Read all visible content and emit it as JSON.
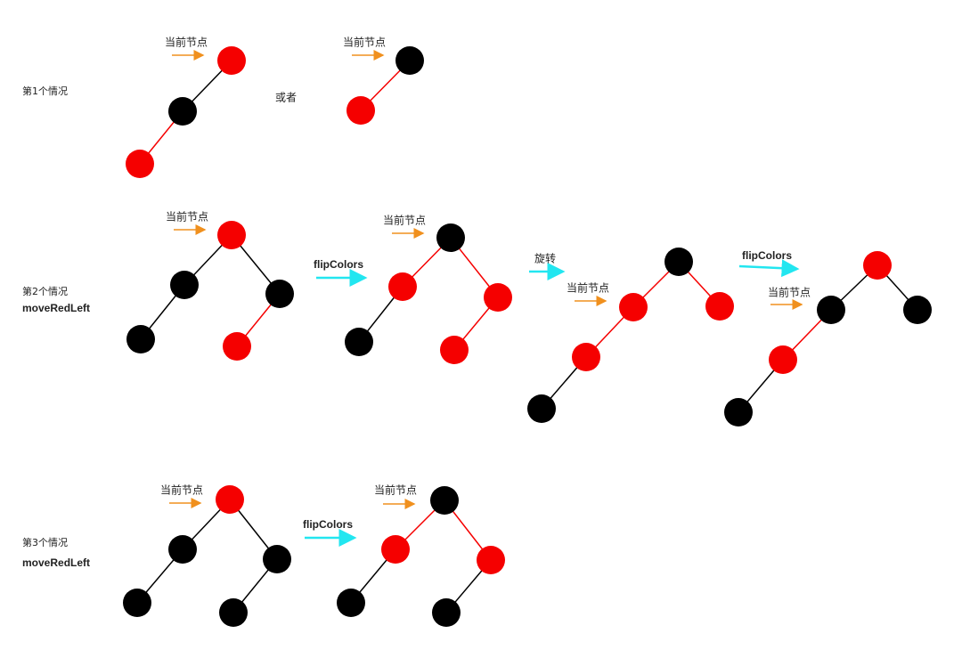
{
  "cases": [
    {
      "label": "第1个情况",
      "pointers": [
        "当前节点",
        "当前节点"
      ],
      "separator": "或者"
    },
    {
      "label": "第2个情况",
      "method": "moveRedLeft",
      "pointers": [
        "当前节点",
        "当前节点",
        "当前节点",
        "当前节点"
      ],
      "operations": [
        "flipColors",
        "旋转",
        "flipColors"
      ]
    },
    {
      "label": "第3个情况",
      "method": "moveRedLeft",
      "pointers": [
        "当前节点",
        "当前节点"
      ],
      "operations": [
        "flipColors"
      ]
    }
  ]
}
